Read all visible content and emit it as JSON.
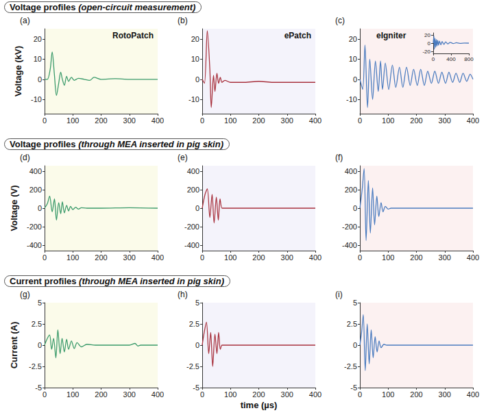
{
  "chart_data": [
    {
      "type": "line",
      "title": "(a)",
      "subtitle": "Voltage profiles (open-circuit measurement)",
      "annotation": "RotoPatch",
      "ylabel": "Voltage (kV)",
      "xlim": [
        0,
        400
      ],
      "xticks": [
        0,
        100,
        200,
        300,
        400
      ],
      "ylim": [
        -17,
        25
      ],
      "yticks": [
        -10,
        0,
        10,
        20
      ],
      "grid": false,
      "series": [
        {
          "color": "#3a9a6a",
          "x": [
            0,
            10,
            20,
            27,
            35,
            42,
            50,
            57,
            63,
            70,
            78,
            85,
            95,
            105,
            120,
            140,
            160,
            175,
            200,
            250,
            300,
            350,
            400
          ],
          "values": [
            0,
            0,
            5,
            13.5,
            2,
            -8,
            -2,
            3.5,
            0,
            -3,
            1.5,
            -1,
            1,
            -0.5,
            0.5,
            0,
            -0.5,
            1,
            0,
            0.3,
            0,
            0,
            0
          ]
        }
      ]
    },
    {
      "type": "line",
      "title": "(b)",
      "annotation": "ePatch",
      "xlim": [
        0,
        400
      ],
      "xticks": [
        0,
        100,
        200,
        300,
        400
      ],
      "ylim": [
        -17,
        25
      ],
      "yticks": [
        -10,
        0,
        10,
        20
      ],
      "grid": false,
      "series": [
        {
          "color": "#a8323e",
          "x": [
            0,
            8,
            18,
            27,
            32,
            40,
            45,
            52,
            58,
            64,
            70,
            80,
            100,
            150,
            200,
            250,
            300,
            400
          ],
          "values": [
            0,
            -2,
            24,
            5,
            -14,
            2,
            -6,
            3,
            -2,
            1,
            -1.5,
            -0.5,
            -1.5,
            -1.5,
            -1,
            -1.5,
            -1.5,
            -1.5
          ]
        }
      ]
    },
    {
      "type": "line",
      "title": "(c)",
      "annotation": "eIgniter",
      "xlim": [
        0,
        400
      ],
      "xticks": [
        0,
        100,
        200,
        300,
        400
      ],
      "ylim": [
        -17,
        25
      ],
      "yticks": [
        -10,
        0,
        10,
        20
      ],
      "grid": false,
      "series": [
        {
          "color": "#4a7bbf",
          "x": [
            0,
            10,
            18,
            27,
            35,
            45,
            55,
            65,
            73,
            80,
            90,
            102,
            115,
            127,
            140,
            152,
            165,
            178,
            190,
            203,
            215,
            228,
            240,
            253,
            265,
            278,
            290,
            303,
            315,
            328,
            340,
            353,
            365,
            378,
            390,
            400
          ],
          "values": [
            0,
            -5,
            17,
            -14,
            10,
            -10,
            9,
            -6,
            9,
            -5,
            8,
            -5,
            7,
            -4,
            6,
            -4,
            6,
            -3,
            5,
            -3,
            5,
            -3,
            4,
            -2,
            4,
            -2,
            3.5,
            -2,
            3.5,
            -1.5,
            3,
            -1.5,
            3,
            -1,
            2.5,
            0
          ]
        }
      ],
      "inset": {
        "type": "line",
        "xlim": [
          0,
          800
        ],
        "xticks": [
          0,
          400,
          800
        ],
        "ylim": [
          -25,
          25
        ],
        "yticks": [
          -20,
          0,
          20
        ],
        "grid": false,
        "series": [
          {
            "color": "#4a7bbf",
            "x": [
              0,
              15,
              25,
              40,
              55,
              70,
              85,
              100,
              120,
              140,
              170,
              200,
              240,
              280,
              330,
              380,
              450,
              520,
              600,
              700,
              800
            ],
            "values": [
              0,
              18,
              -15,
              12,
              -10,
              9,
              -7,
              7,
              -5,
              5,
              -4,
              4,
              -3,
              3,
              -2,
              2,
              -1,
              1,
              -0.5,
              0.3,
              0
            ]
          }
        ]
      }
    },
    {
      "type": "line",
      "title": "(d)",
      "subtitle": "Voltage profiles (through MEA inserted in pig skin)",
      "ylabel": "Voltage (V)",
      "xlim": [
        0,
        400
      ],
      "xticks": [
        0,
        100,
        200,
        300,
        400
      ],
      "ylim": [
        -460,
        460
      ],
      "yticks": [
        -400,
        -200,
        0,
        200,
        400
      ],
      "grid": false,
      "series": [
        {
          "color": "#3a9a6a",
          "x": [
            0,
            10,
            18,
            27,
            35,
            42,
            50,
            57,
            63,
            70,
            78,
            85,
            92,
            100,
            110,
            120,
            130,
            150,
            200,
            300,
            400
          ],
          "values": [
            0,
            50,
            130,
            -40,
            100,
            -130,
            60,
            -60,
            70,
            -50,
            30,
            -30,
            20,
            -15,
            10,
            -10,
            5,
            0,
            0,
            5,
            0
          ]
        }
      ]
    },
    {
      "type": "line",
      "title": "(e)",
      "xlim": [
        0,
        400
      ],
      "xticks": [
        0,
        100,
        200,
        300,
        400
      ],
      "ylim": [
        -460,
        460
      ],
      "yticks": [
        -400,
        -200,
        0,
        200,
        400
      ],
      "grid": false,
      "series": [
        {
          "color": "#a8323e",
          "x": [
            0,
            10,
            18,
            27,
            35,
            42,
            50,
            57,
            63,
            70,
            80,
            400
          ],
          "values": [
            0,
            150,
            210,
            -100,
            150,
            -160,
            120,
            -130,
            100,
            0,
            0,
            0
          ]
        }
      ]
    },
    {
      "type": "line",
      "title": "(f)",
      "xlim": [
        0,
        400
      ],
      "xticks": [
        0,
        100,
        200,
        300,
        400
      ],
      "ylim": [
        -460,
        460
      ],
      "yticks": [
        -400,
        -200,
        0,
        200,
        400
      ],
      "grid": false,
      "series": [
        {
          "color": "#4a7bbf",
          "x": [
            0,
            8,
            15,
            22,
            30,
            37,
            45,
            52,
            60,
            67,
            75,
            82,
            90,
            100,
            110,
            400
          ],
          "values": [
            0,
            200,
            430,
            -350,
            300,
            -270,
            220,
            -180,
            130,
            -90,
            60,
            -40,
            20,
            -10,
            0,
            0
          ]
        }
      ]
    },
    {
      "type": "line",
      "title": "(g)",
      "subtitle": "Current profiles (through MEA inserted in pig skin)",
      "ylabel": "Current (A)",
      "xlim": [
        0,
        400
      ],
      "xticks": [
        0,
        100,
        200,
        300,
        400
      ],
      "ylim": [
        -5,
        5
      ],
      "yticks": [
        -5,
        -2.5,
        0,
        2.5,
        5
      ],
      "grid": false,
      "series": [
        {
          "color": "#3a9a6a",
          "x": [
            0,
            10,
            18,
            25,
            32,
            40,
            47,
            55,
            62,
            70,
            78,
            85,
            95,
            105,
            115,
            130,
            150,
            180,
            300,
            320,
            330,
            340,
            400
          ],
          "values": [
            0,
            0.8,
            1.2,
            -0.5,
            0.8,
            -1.5,
            1.8,
            -1,
            0.8,
            -0.8,
            0.7,
            -0.5,
            0.5,
            -0.4,
            0.3,
            -0.2,
            0.1,
            0,
            0,
            0.2,
            -0.1,
            0,
            0
          ]
        }
      ]
    },
    {
      "type": "line",
      "title": "(h)",
      "xlabel": "time (µs)",
      "xlim": [
        0,
        400
      ],
      "xticks": [
        0,
        100,
        200,
        300,
        400
      ],
      "ylim": [
        -5,
        5
      ],
      "yticks": [
        -5,
        -2.5,
        0,
        2.5,
        5
      ],
      "grid": false,
      "series": [
        {
          "color": "#a8323e",
          "x": [
            0,
            7,
            15,
            23,
            30,
            37,
            45,
            52,
            58,
            64,
            70,
            80,
            400
          ],
          "values": [
            0,
            1.5,
            2.7,
            -1,
            1.5,
            -2.5,
            1.3,
            -1,
            1.5,
            -0.5,
            0,
            0,
            0
          ]
        }
      ]
    },
    {
      "type": "line",
      "title": "(i)",
      "xlim": [
        0,
        400
      ],
      "xticks": [
        0,
        100,
        200,
        300,
        400
      ],
      "ylim": [
        -5,
        5
      ],
      "yticks": [
        -5,
        -2.5,
        0,
        2.5,
        5
      ],
      "grid": false,
      "series": [
        {
          "color": "#4a7bbf",
          "x": [
            0,
            6,
            12,
            19,
            26,
            33,
            40,
            47,
            54,
            61,
            68,
            75,
            85,
            95,
            400
          ],
          "values": [
            0,
            1.5,
            3.6,
            -3,
            2.5,
            -2.2,
            1.8,
            -1.5,
            1,
            -0.8,
            0.5,
            -0.3,
            0.1,
            0,
            0
          ]
        }
      ]
    }
  ]
}
